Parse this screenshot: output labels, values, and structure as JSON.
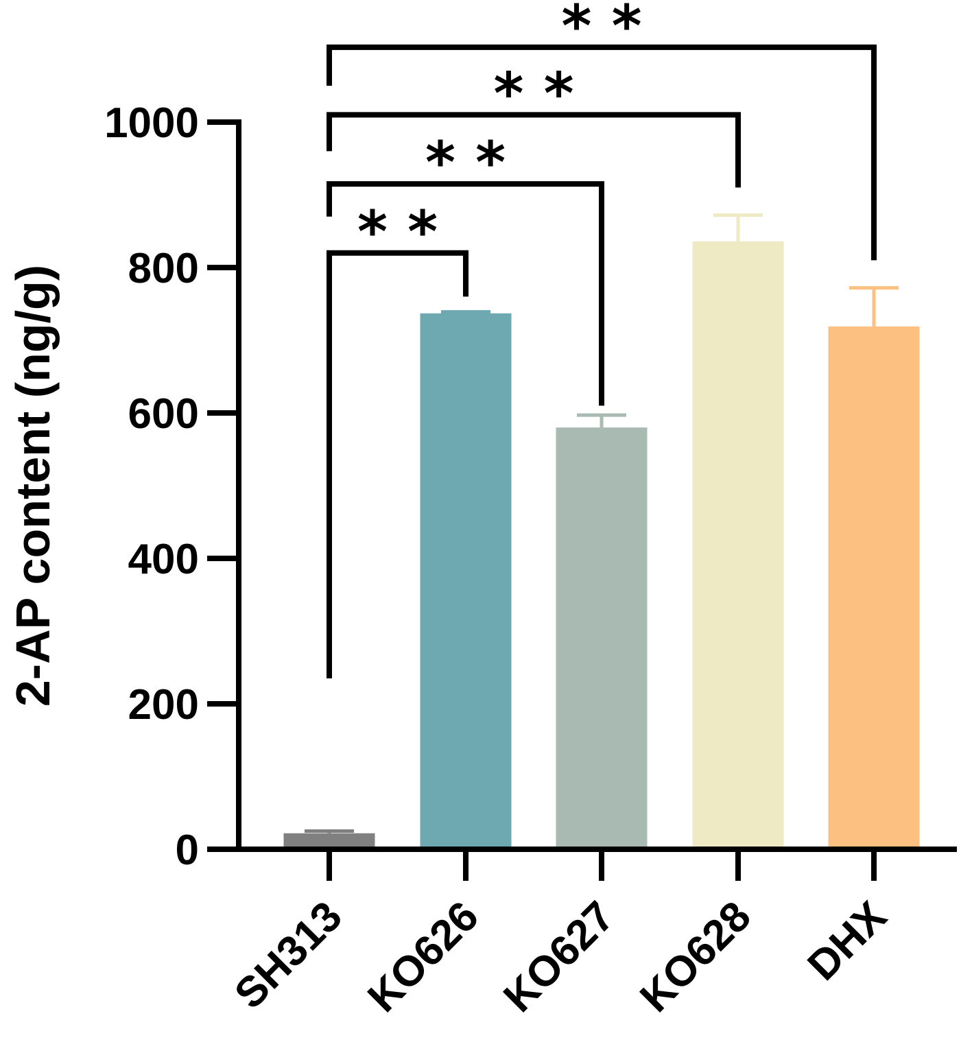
{
  "chart_data": {
    "type": "bar",
    "title": "",
    "xlabel": "",
    "ylabel": "2-AP content (ng/g)",
    "ylim": [
      0,
      1000
    ],
    "yticks": [
      0,
      200,
      400,
      600,
      800,
      1000
    ],
    "grid": false,
    "categories": [
      "SH313",
      "KO626",
      "KO627",
      "KO628",
      "DHX"
    ],
    "values": [
      22,
      737,
      580,
      836,
      719
    ],
    "errors": [
      3,
      2,
      17,
      36,
      53
    ],
    "colors": [
      "#808080",
      "#6ea8b0",
      "#a8bab2",
      "#eeebc4",
      "#fcc181"
    ],
    "error_colors": [
      "#808080",
      "#6ea8b0",
      "#a8bab2",
      "#eeebc4",
      "#fcc181"
    ],
    "significance": [
      {
        "from": "SH313",
        "to": "KO626",
        "label": "* *",
        "left_y": 235,
        "right_y": 760,
        "top_y": 820
      },
      {
        "from": "SH313",
        "to": "KO627",
        "label": "* *",
        "left_y": 870,
        "right_y": 610,
        "top_y": 915
      },
      {
        "from": "SH313",
        "to": "KO628",
        "label": "* *",
        "left_y": 960,
        "right_y": 910,
        "top_y": 1010
      },
      {
        "from": "SH313",
        "to": "DHX",
        "label": "* *",
        "left_y": 1050,
        "right_y": 810,
        "top_y": 1103
      }
    ]
  }
}
